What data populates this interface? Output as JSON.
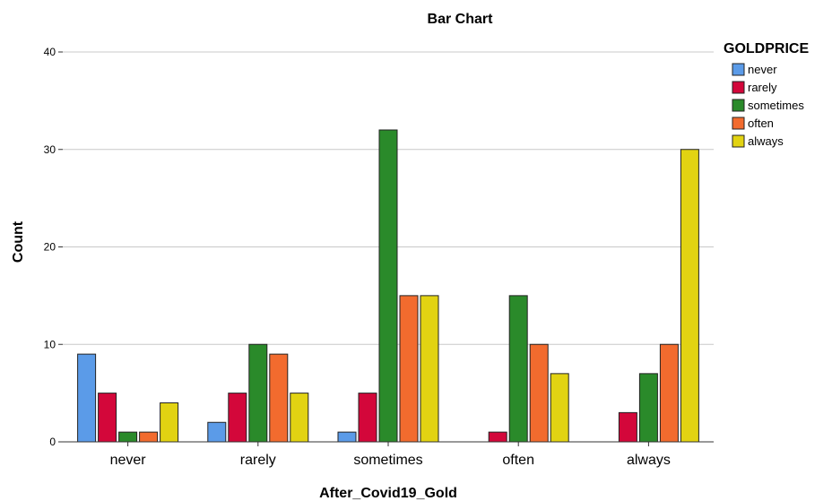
{
  "chart_data": {
    "type": "bar",
    "title": "Bar Chart",
    "xlabel": "After_Covid19_Gold",
    "ylabel": "Count",
    "categories": [
      "never",
      "rarely",
      "sometimes",
      "often",
      "always"
    ],
    "ylim": [
      0,
      40
    ],
    "yticks": [
      0,
      10,
      20,
      30,
      40
    ],
    "grid": true,
    "legend": {
      "title": "GOLDPRICE",
      "placement": "top-right"
    },
    "series": [
      {
        "name": "never",
        "color": "#5b9be8",
        "values": [
          9,
          2,
          1,
          0,
          0
        ]
      },
      {
        "name": "rarely",
        "color": "#d3073a",
        "values": [
          5,
          5,
          5,
          1,
          3
        ]
      },
      {
        "name": "sometimes",
        "color": "#2a8a2a",
        "values": [
          1,
          10,
          32,
          15,
          7
        ]
      },
      {
        "name": "often",
        "color": "#f26b2e",
        "values": [
          1,
          9,
          15,
          10,
          10
        ]
      },
      {
        "name": "always",
        "color": "#e2d312",
        "values": [
          4,
          5,
          15,
          7,
          30
        ]
      }
    ]
  }
}
